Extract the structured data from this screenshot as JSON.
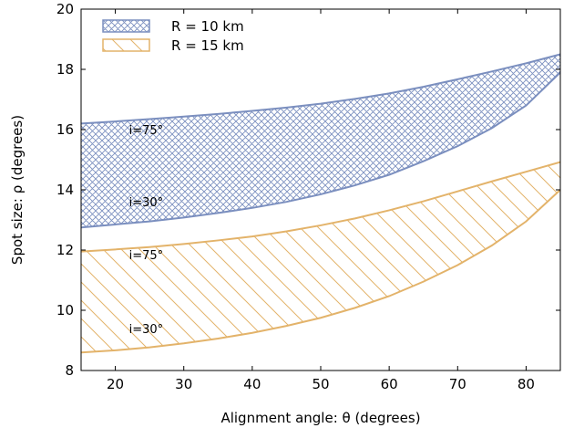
{
  "chart_data": {
    "type": "area",
    "xlabel": "Alignment angle: θ (degrees)",
    "ylabel": "Spot size: ρ (degrees)",
    "xlim": [
      15,
      85
    ],
    "ylim": [
      8,
      20
    ],
    "xticks": [
      20,
      30,
      40,
      50,
      60,
      70,
      80
    ],
    "yticks": [
      8,
      10,
      12,
      14,
      16,
      18,
      20
    ],
    "grid": false,
    "legend_position": "top-left",
    "series": [
      {
        "name": "R = 10 km",
        "color": "#7b8fbf",
        "fill": "crosshatch",
        "x": [
          15,
          20,
          25,
          30,
          35,
          40,
          45,
          50,
          55,
          60,
          65,
          70,
          75,
          80,
          85
        ],
        "upper": [
          16.2,
          16.27,
          16.35,
          16.43,
          16.52,
          16.62,
          16.73,
          16.86,
          17.02,
          17.2,
          17.42,
          17.67,
          17.93,
          18.2,
          18.5
        ],
        "lower": [
          12.75,
          12.85,
          12.95,
          13.08,
          13.23,
          13.4,
          13.6,
          13.85,
          14.15,
          14.5,
          14.95,
          15.45,
          16.05,
          16.8,
          17.9
        ]
      },
      {
        "name": "R = 15 km",
        "color": "#e3b36a",
        "fill": "diagonal",
        "x": [
          15,
          20,
          25,
          30,
          35,
          40,
          45,
          50,
          55,
          60,
          65,
          70,
          75,
          80,
          85
        ],
        "upper": [
          11.95,
          12.02,
          12.1,
          12.2,
          12.32,
          12.45,
          12.62,
          12.82,
          13.05,
          13.32,
          13.62,
          13.95,
          14.28,
          14.6,
          14.92
        ],
        "lower": [
          8.6,
          8.67,
          8.77,
          8.9,
          9.06,
          9.25,
          9.48,
          9.75,
          10.08,
          10.47,
          10.95,
          11.5,
          12.15,
          12.95,
          14.0
        ]
      }
    ],
    "annotations": [
      {
        "text": "i=75°",
        "x": 22,
        "y": 15.85
      },
      {
        "text": "i=30°",
        "x": 22,
        "y": 13.45
      },
      {
        "text": "i=75°",
        "x": 22,
        "y": 11.7
      },
      {
        "text": "i=30°",
        "x": 22,
        "y": 9.25
      }
    ]
  }
}
